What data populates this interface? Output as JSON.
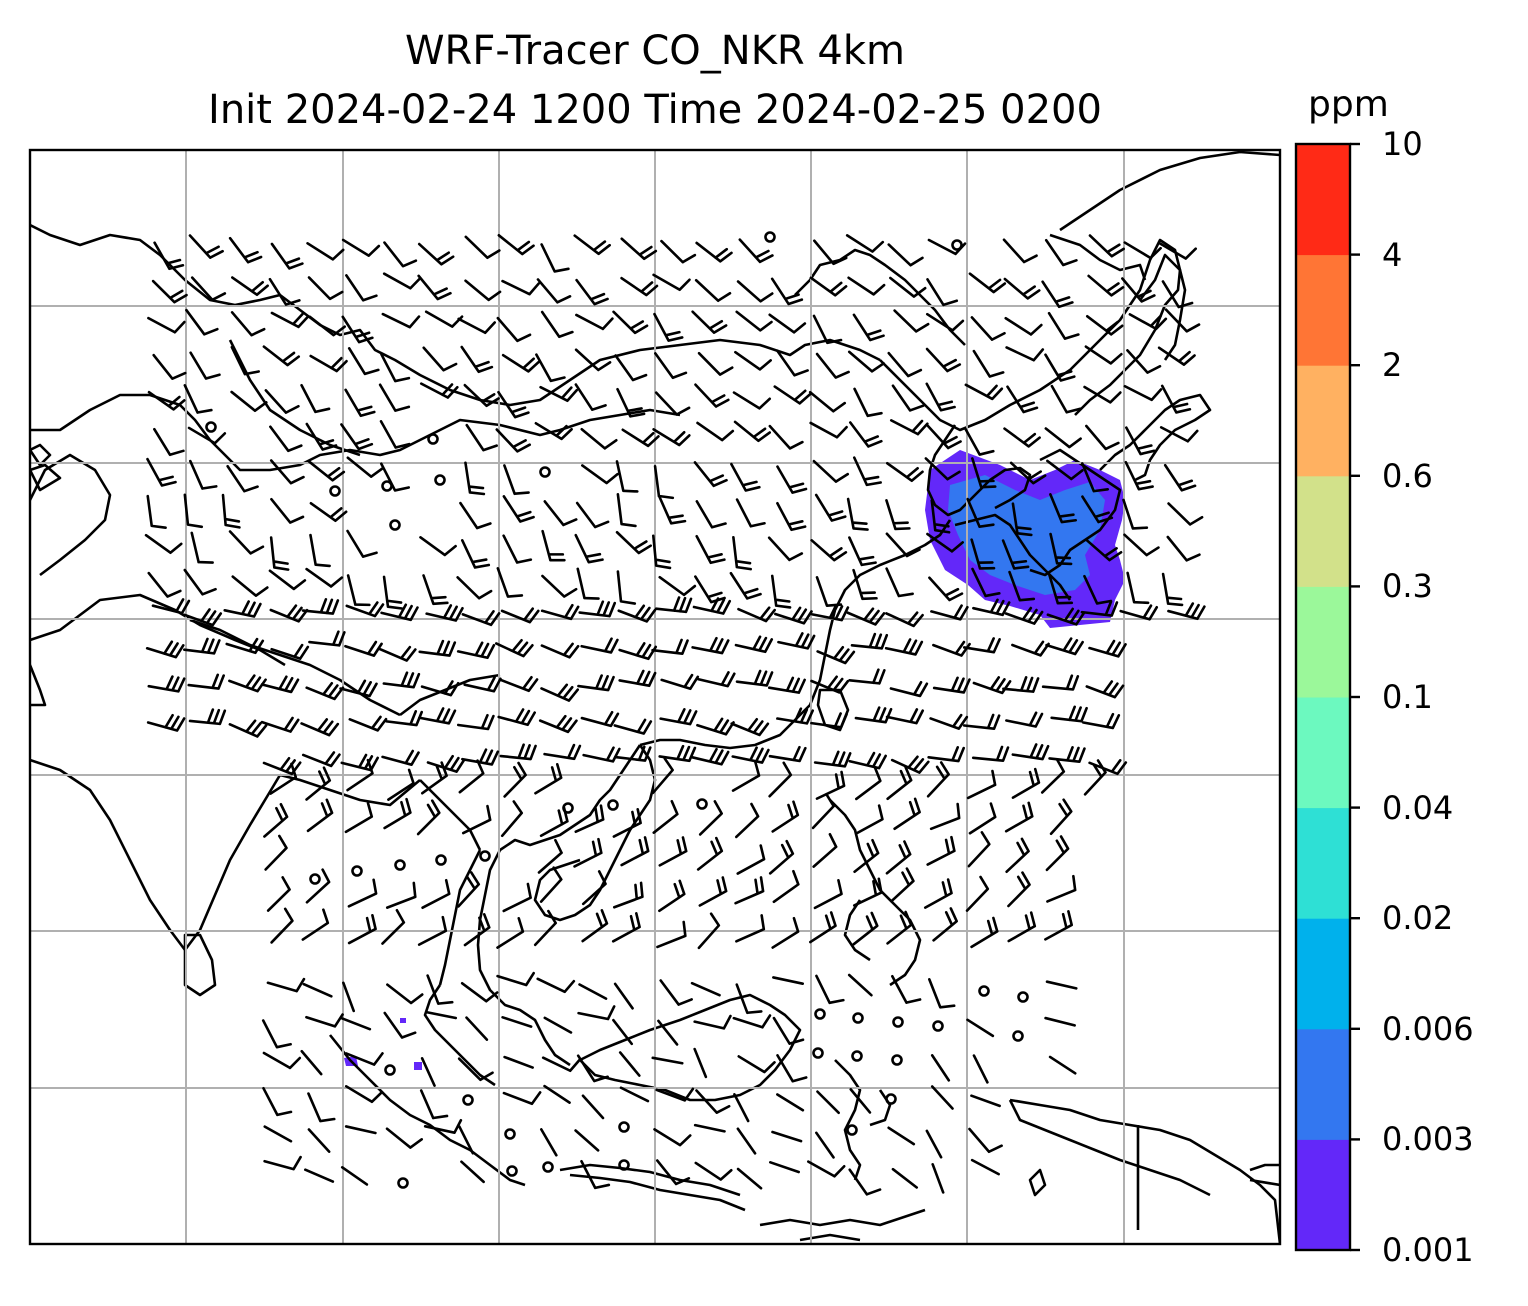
{
  "title_line1": "WRF-Tracer CO_NKR 4km",
  "title_line2": "Init 2024-02-24 1200 Time 2024-02-25 0200",
  "colorbar": {
    "unit": "ppm",
    "levels": [
      "0.001",
      "0.003",
      "0.006",
      "0.02",
      "0.04",
      "0.1",
      "0.3",
      "0.6",
      "2",
      "4",
      "10"
    ],
    "colors": [
      "#6328f9",
      "#3377f0",
      "#00b1ec",
      "#2ee0d5",
      "#6cf9bf",
      "#9bf89a",
      "#d2e18a",
      "#ffb161",
      "#ff7535",
      "#ff2a16"
    ]
  },
  "map": {
    "plume_color": "#6328f9",
    "plume_core_color": "#3377f0",
    "grid_color": "#b0b0b0",
    "coast_color": "#000000"
  }
}
